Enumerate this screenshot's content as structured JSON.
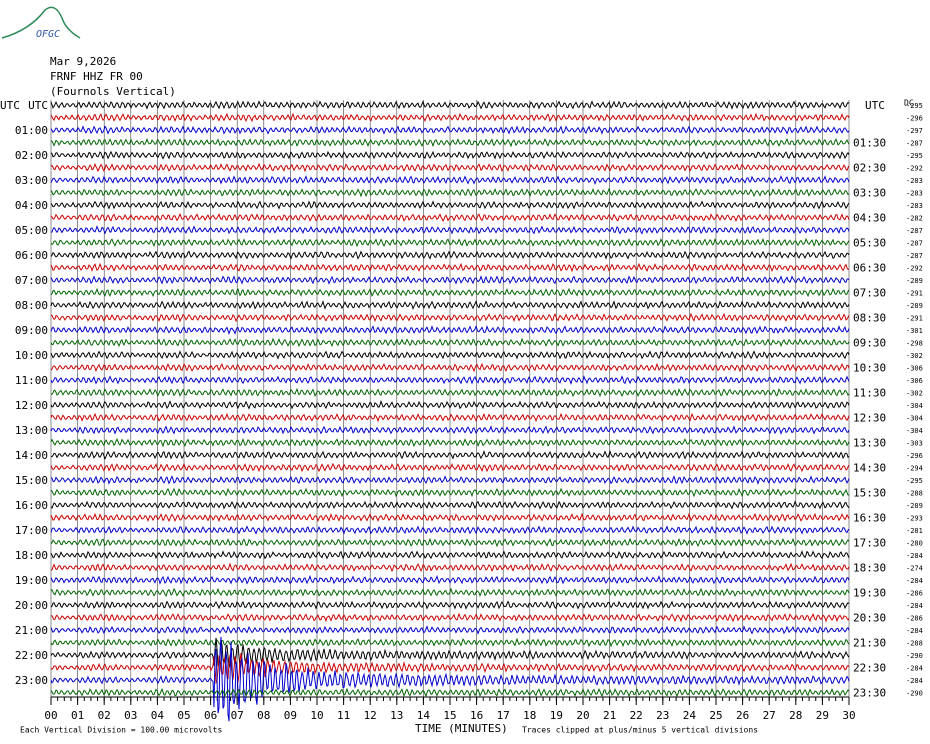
{
  "chart_data": {
    "type": "helicorder",
    "logo": "OFGC",
    "title": "Mar 9,2026",
    "subtitle": "FRNF HHZ FR 00",
    "station_name": "(Fournols Vertical)",
    "left_header": "UTC",
    "right_header": "UTC",
    "dc_header": "DC",
    "trace_colors": [
      "#000000",
      "#cc0000",
      "#0000cc",
      "#006600"
    ],
    "left_labels": [
      "UTC",
      null,
      "01:00",
      null,
      "02:00",
      null,
      "03:00",
      null,
      "04:00",
      null,
      "05:00",
      null,
      "06:00",
      null,
      "07:00",
      null,
      "08:00",
      null,
      "09:00",
      null,
      "10:00",
      null,
      "11:00",
      null,
      "12:00",
      null,
      "13:00",
      null,
      "14:00",
      null,
      "15:00",
      null,
      "16:00",
      null,
      "17:00",
      null,
      "18:00",
      null,
      "19:00",
      null,
      "20:00",
      null,
      "21:00",
      null,
      "22:00",
      null,
      "23:00",
      null
    ],
    "right_labels": [
      null,
      null,
      null,
      "01:30",
      null,
      "02:30",
      null,
      "03:30",
      null,
      "04:30",
      null,
      "05:30",
      null,
      "06:30",
      null,
      "07:30",
      null,
      "08:30",
      null,
      "09:30",
      null,
      "10:30",
      null,
      "11:30",
      null,
      "12:30",
      null,
      "13:30",
      null,
      "14:30",
      null,
      "15:30",
      null,
      "16:30",
      null,
      "17:30",
      null,
      "18:30",
      null,
      "19:30",
      null,
      "20:30",
      null,
      "21:30",
      null,
      "22:30",
      null,
      "23:30"
    ],
    "dc_offsets": [
      -295,
      -296,
      -297,
      -287,
      -295,
      -292,
      -283,
      -283,
      -283,
      -282,
      -287,
      -287,
      -287,
      -292,
      -289,
      -291,
      -289,
      -291,
      -301,
      -298,
      -302,
      -306,
      -306,
      -302,
      -304,
      -304,
      -304,
      -303,
      -296,
      -294,
      -295,
      -288,
      -289,
      -293,
      -281,
      -280,
      -284,
      -274,
      -284,
      -286,
      -284,
      -286,
      -284,
      -288,
      -290,
      -284,
      -284,
      -290
    ],
    "xlim": [
      0,
      30
    ],
    "xticks": [
      {
        "value": 0,
        "label": "00"
      },
      {
        "value": 1,
        "label": "01"
      },
      {
        "value": 2,
        "label": "02"
      },
      {
        "value": 3,
        "label": "03"
      },
      {
        "value": 4,
        "label": "04"
      },
      {
        "value": 5,
        "label": "05"
      },
      {
        "value": 6,
        "label": "06"
      },
      {
        "value": 7,
        "label": "07"
      },
      {
        "value": 8,
        "label": "08"
      },
      {
        "value": 9,
        "label": "09"
      },
      10,
      11,
      12,
      13,
      14,
      15,
      16,
      17,
      18,
      19,
      20,
      21,
      22,
      23,
      24,
      25,
      26,
      27,
      28,
      29,
      30
    ],
    "x_label": "TIME (MINUTES)",
    "footer_left": "Each Vertical Division =  100.00 microvolts",
    "footer_right": "Traces clipped at plus/minus 5 vertical divisions",
    "grid": true
  }
}
